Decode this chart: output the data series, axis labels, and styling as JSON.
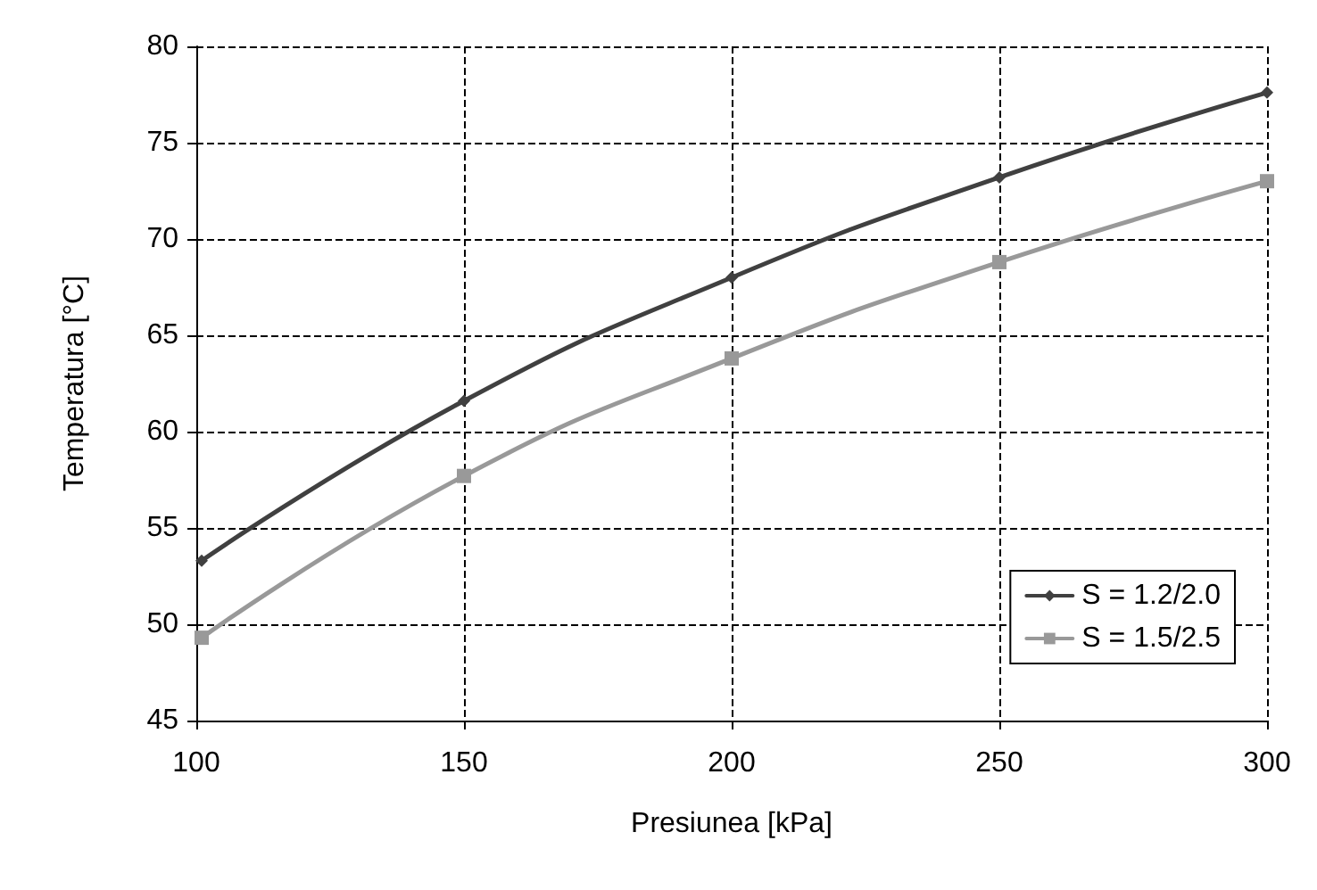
{
  "chart_data": {
    "type": "line",
    "xlabel": "Presiunea [kPa]",
    "ylabel": "Temperatura [°C]",
    "x": [
      101,
      150,
      200,
      250,
      300
    ],
    "series": [
      {
        "name": "S = 1.2/2.0",
        "color": "#404040",
        "marker": "diamond",
        "values": [
          53.3,
          61.6,
          68.0,
          73.2,
          77.6
        ]
      },
      {
        "name": "S = 1.5/2.5",
        "color": "#999999",
        "marker": "square",
        "values": [
          49.3,
          57.7,
          63.8,
          68.8,
          73.0
        ]
      }
    ],
    "xlim": [
      100,
      300
    ],
    "xticks": [
      100,
      150,
      200,
      250,
      300
    ],
    "ylim": [
      45,
      80
    ],
    "yticks": [
      45,
      50,
      55,
      60,
      65,
      70,
      75,
      80
    ],
    "grid": true,
    "legend": "bottom right",
    "line_style": "solid"
  }
}
